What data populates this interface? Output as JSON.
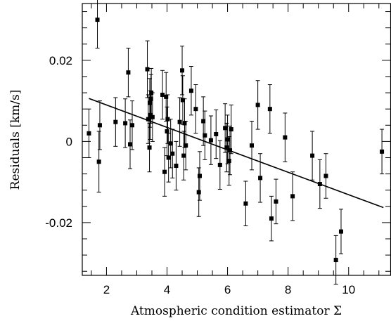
{
  "chart_data": {
    "type": "scatter",
    "title": "",
    "xlabel": "Atmospheric condition estimator Σ",
    "ylabel": "Residuals [km/s]",
    "xlim": [
      1.2,
      11.4
    ],
    "ylim": [
      -0.033,
      0.034
    ],
    "xticks": [
      2,
      4,
      6,
      8,
      10
    ],
    "xtick_labels": [
      "2",
      "4",
      "6",
      "8",
      "10"
    ],
    "yticks": [
      -0.02,
      0,
      0.02
    ],
    "ytick_labels": [
      "-0.02",
      "0",
      "0.02"
    ],
    "grid": false,
    "legend": "none",
    "series": [
      {
        "points": [
          [
            1.42,
            0.002,
            0.006
          ],
          [
            1.7,
            0.03,
            0.007
          ],
          [
            1.75,
            -0.005,
            0.0075
          ],
          [
            1.78,
            0.004,
            0.006
          ],
          [
            2.3,
            0.0048,
            0.006
          ],
          [
            2.62,
            0.0045,
            0.006
          ],
          [
            2.72,
            0.017,
            0.006
          ],
          [
            2.78,
            -0.0007,
            0.006
          ],
          [
            2.85,
            0.004,
            0.006
          ],
          [
            3.35,
            0.0178,
            0.007
          ],
          [
            3.38,
            0.0055,
            0.006
          ],
          [
            3.42,
            -0.0015,
            0.006
          ],
          [
            3.43,
            0.0095,
            0.006
          ],
          [
            3.45,
            0.0065,
            0.006
          ],
          [
            3.47,
            0.0105,
            0.006
          ],
          [
            3.48,
            0.012,
            0.006
          ],
          [
            3.52,
            0.006,
            0.006
          ],
          [
            3.85,
            0.0115,
            0.006
          ],
          [
            3.92,
            -0.0075,
            0.006
          ],
          [
            3.97,
            0.011,
            0.006
          ],
          [
            4.0,
            0.0025,
            0.006
          ],
          [
            4.02,
            0.0055,
            0.006
          ],
          [
            4.05,
            -0.004,
            0.006
          ],
          [
            4.12,
            -0.0005,
            0.006
          ],
          [
            4.18,
            -0.003,
            0.006
          ],
          [
            4.3,
            -0.006,
            0.006
          ],
          [
            4.42,
            0.0048,
            0.006
          ],
          [
            4.5,
            0.0175,
            0.006
          ],
          [
            4.52,
            0.0102,
            0.006
          ],
          [
            4.55,
            -0.0035,
            0.006
          ],
          [
            4.58,
            0.0045,
            0.006
          ],
          [
            4.62,
            -0.001,
            0.006
          ],
          [
            4.8,
            0.0125,
            0.006
          ],
          [
            4.95,
            0.008,
            0.006
          ],
          [
            5.05,
            -0.0125,
            0.006
          ],
          [
            5.08,
            -0.0085,
            0.006
          ],
          [
            5.2,
            0.005,
            0.006
          ],
          [
            5.25,
            0.0015,
            0.006
          ],
          [
            5.45,
            0.0003,
            0.006
          ],
          [
            5.62,
            0.0018,
            0.006
          ],
          [
            5.75,
            -0.0058,
            0.006
          ],
          [
            5.92,
            0.0033,
            0.006
          ],
          [
            5.97,
            -0.0015,
            0.006
          ],
          [
            6.0,
            0.0005,
            0.006
          ],
          [
            6.05,
            -0.0048,
            0.006
          ],
          [
            6.08,
            -0.0022,
            0.006
          ],
          [
            6.12,
            0.003,
            0.006
          ],
          [
            6.6,
            -0.0153,
            0.0055
          ],
          [
            6.8,
            -0.001,
            0.006
          ],
          [
            7.0,
            0.009,
            0.006
          ],
          [
            7.08,
            -0.009,
            0.006
          ],
          [
            7.4,
            0.008,
            0.006
          ],
          [
            7.45,
            -0.019,
            0.0055
          ],
          [
            7.6,
            -0.0148,
            0.0055
          ],
          [
            7.9,
            0.001,
            0.006
          ],
          [
            8.15,
            -0.0135,
            0.006
          ],
          [
            8.8,
            -0.0035,
            0.006
          ],
          [
            9.05,
            -0.0105,
            0.006
          ],
          [
            9.25,
            -0.0085,
            0.0055
          ],
          [
            9.58,
            -0.0292,
            0.006
          ],
          [
            9.75,
            -0.0222,
            0.0055
          ],
          [
            11.1,
            -0.0025,
            0.0055
          ]
        ],
        "point_format": "[x, y, y_error]"
      }
    ],
    "fit_line": {
      "x": [
        1.42,
        11.15
      ],
      "y": [
        0.0106,
        -0.0163
      ]
    }
  }
}
